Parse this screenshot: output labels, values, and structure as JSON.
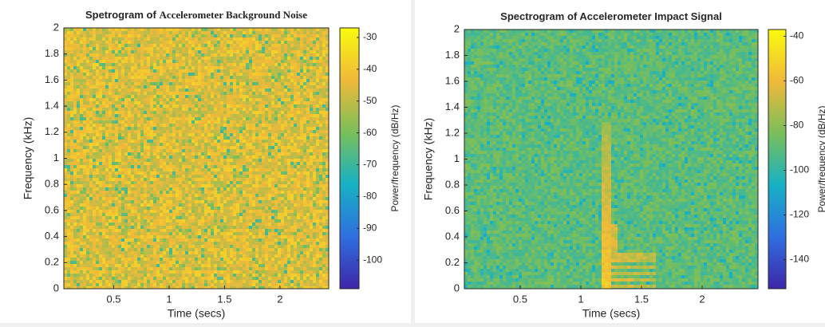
{
  "chart_data": [
    {
      "type": "spectrogram",
      "title": "Spetrogram of",
      "title_suffix": "Accelerometer Background Noise",
      "xlabel": "Time (secs)",
      "ylabel": "Frequency (kHz)",
      "colorbar_label": "Power/frequency (dB/Hz)",
      "xlim": [
        0.05,
        2.44
      ],
      "xticks": [
        0.5,
        1,
        1.5,
        2
      ],
      "ylim": [
        0,
        2
      ],
      "yticks": [
        0,
        0.2,
        0.4,
        0.6,
        0.8,
        1,
        1.2,
        1.4,
        1.6,
        1.8,
        2
      ],
      "clim": [
        -109,
        -27
      ],
      "cticks": [
        -30,
        -40,
        -50,
        -60,
        -70,
        -80,
        -90,
        -100
      ]
    },
    {
      "type": "spectrogram",
      "title": "Spectrogram of Accelerometer Impact Signal",
      "xlabel": "Time (secs)",
      "ylabel": "Frequency (kHz)",
      "colorbar_label": "Power/frequency (dB/Hz)",
      "xlim": [
        0.04,
        2.46
      ],
      "xticks": [
        0.5,
        1,
        1.5,
        2
      ],
      "ylim": [
        0,
        2
      ],
      "yticks": [
        0,
        0.2,
        0.4,
        0.6,
        0.8,
        1,
        1.2,
        1.4,
        1.6,
        1.8,
        2
      ],
      "clim": [
        -153,
        -37
      ],
      "cticks": [
        -40,
        -60,
        -80,
        -100,
        -120,
        -140
      ]
    }
  ]
}
